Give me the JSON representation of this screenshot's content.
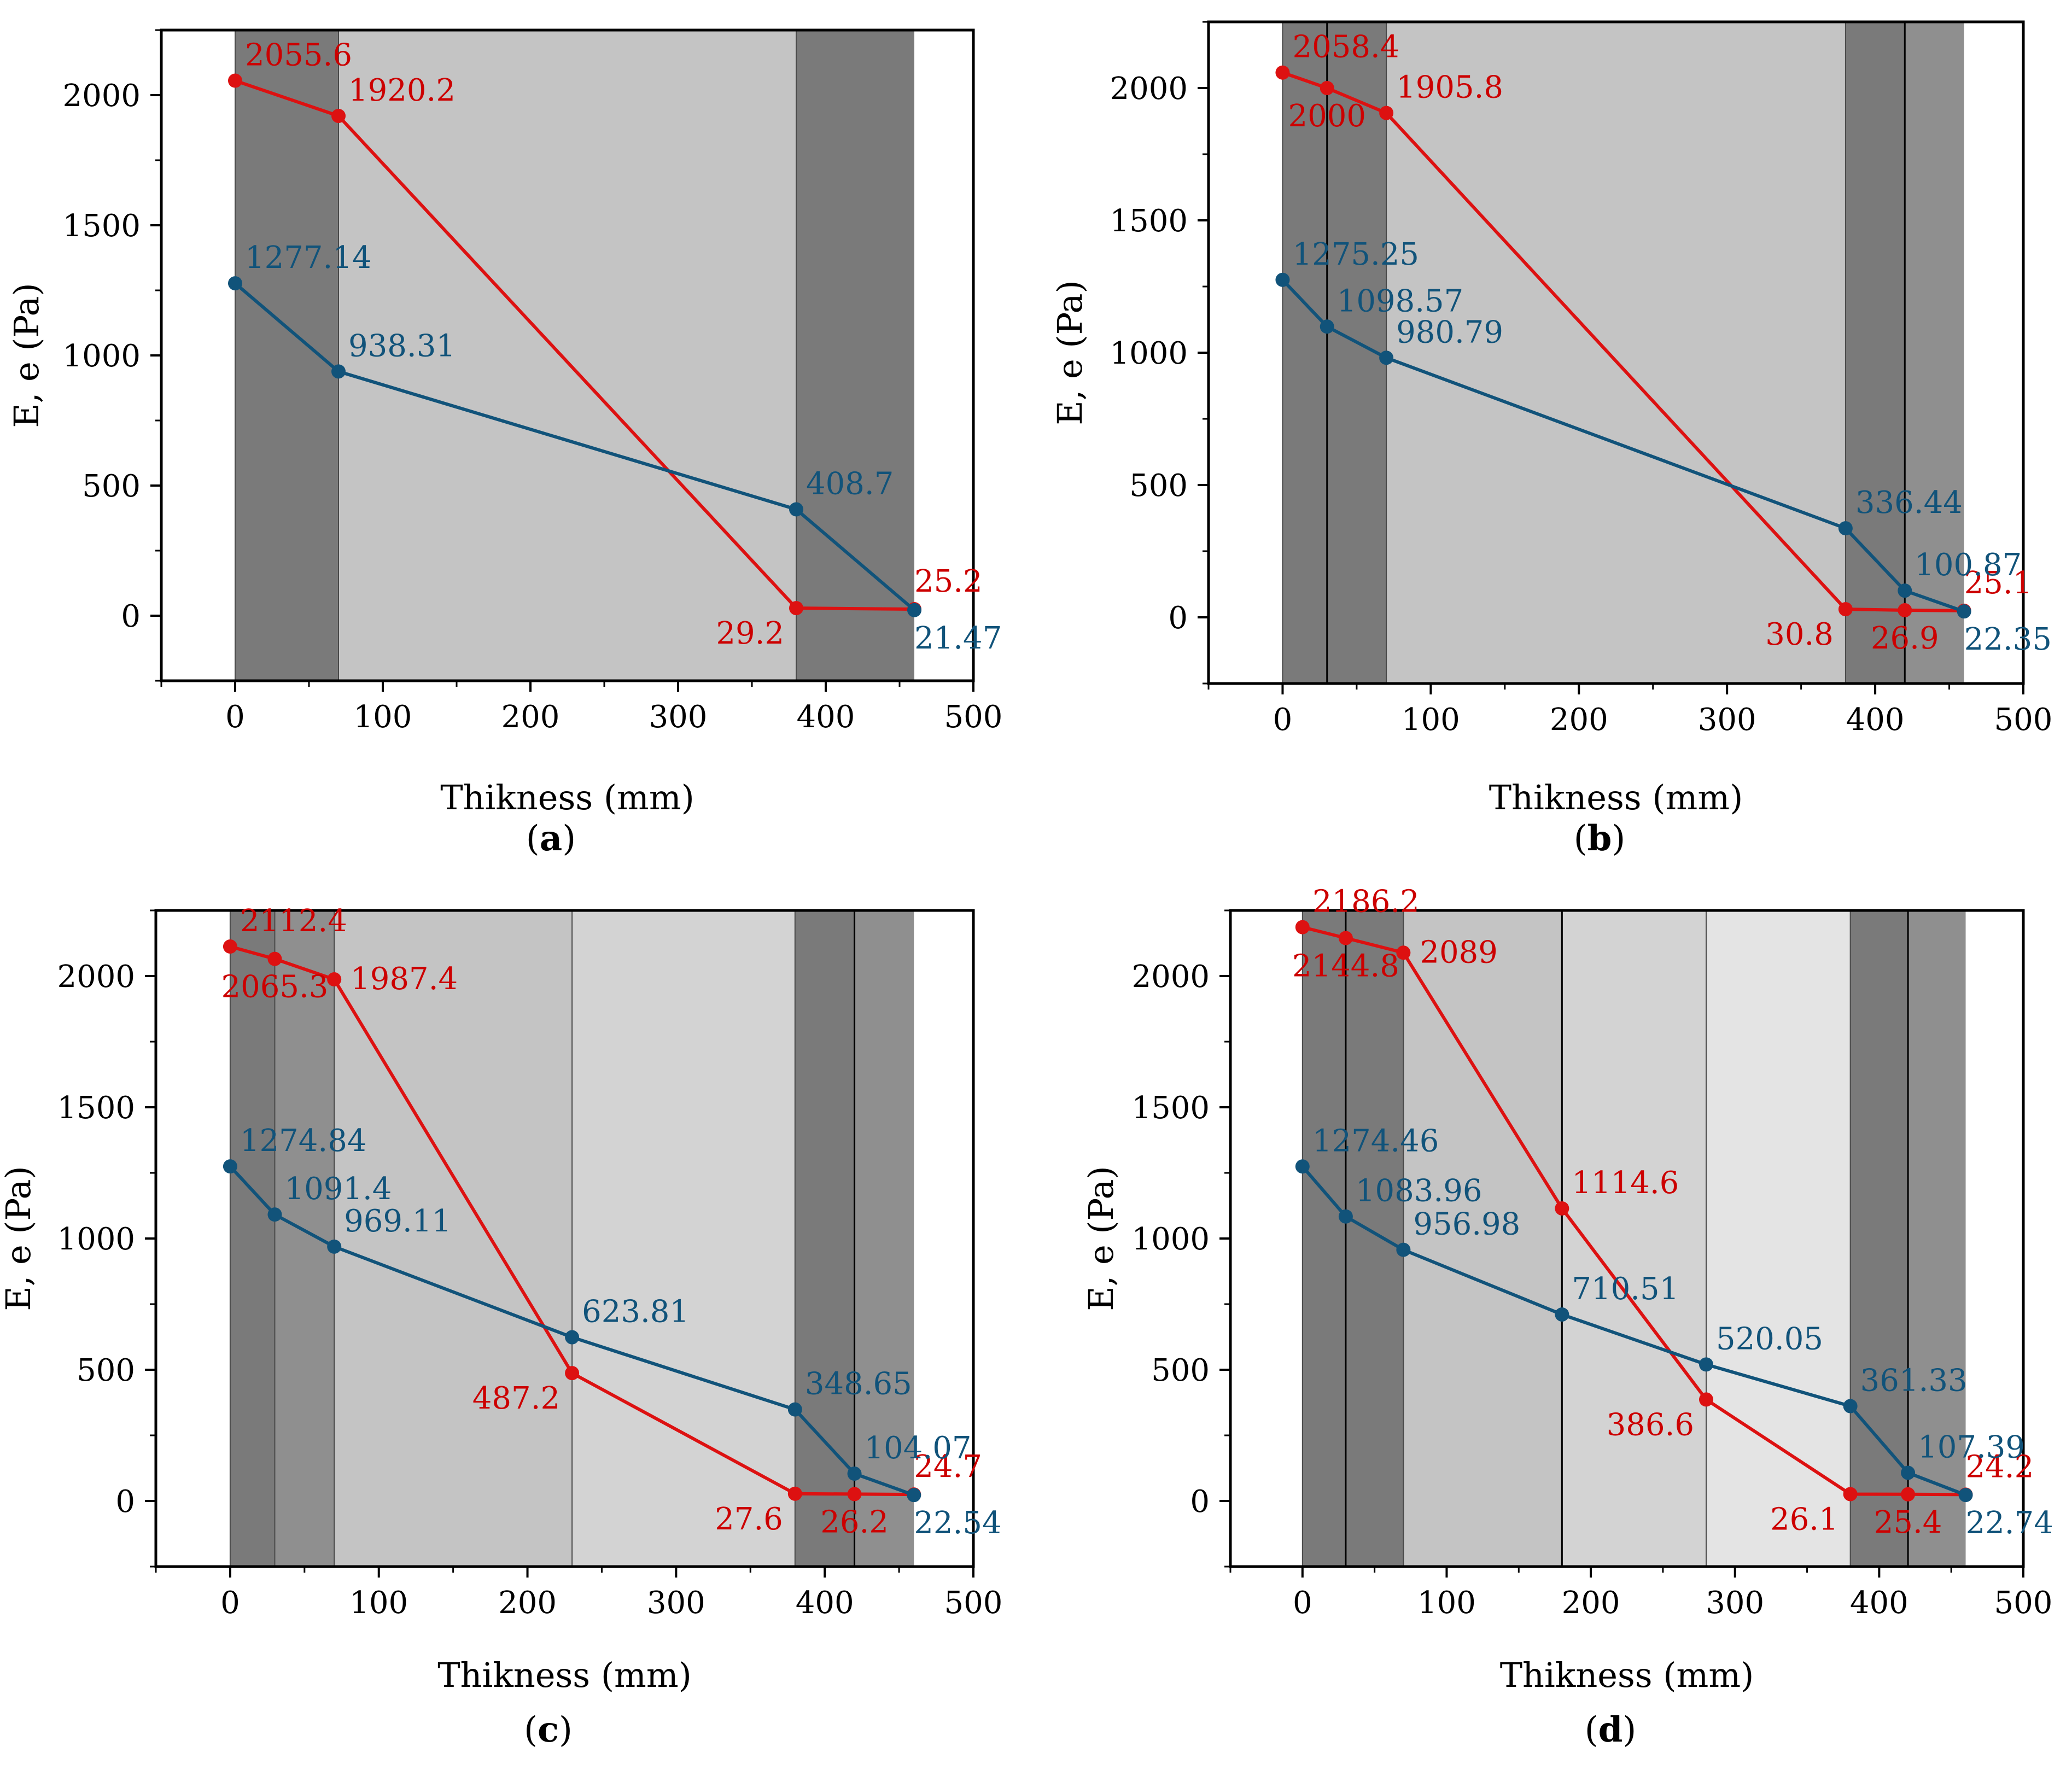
{
  "figure": {
    "colors": {
      "red": "#dd1111",
      "blue": "#11537a",
      "red_label": "#cc0000",
      "blue_label": "#11537a",
      "layer_dark": "#7a7a7a",
      "layer_medium": "#8f8f8f",
      "layer_light": "#c4c4c4",
      "layer_lighter": "#d3d3d3",
      "layer_lightest": "#e4e4e4"
    }
  },
  "chart_data": [
    {
      "id": "a",
      "type": "line",
      "panel_label": "a",
      "xlabel": "Thikness (mm)",
      "ylabel": "E, e (Pa)",
      "xlim": [
        -50,
        500
      ],
      "ylim": [
        -250,
        2250
      ],
      "xticks": [
        0,
        100,
        200,
        300,
        400,
        500
      ],
      "yticks": [
        0,
        500,
        1000,
        1500,
        2000
      ],
      "layers": [
        {
          "x0": 0,
          "x1": 70,
          "shade": "layer_dark"
        },
        {
          "x0": 70,
          "x1": 380,
          "shade": "layer_light"
        },
        {
          "x0": 380,
          "x1": 460,
          "shade": "layer_dark"
        }
      ],
      "boundaries": [],
      "series": [
        {
          "name": "E",
          "color": "red",
          "points": [
            {
              "x": 0,
              "y": 2055.6,
              "label": "2055.6",
              "pos": "ne"
            },
            {
              "x": 70,
              "y": 1920.2,
              "label": "1920.2",
              "pos": "ne"
            },
            {
              "x": 380,
              "y": 29.2,
              "label": "29.2",
              "pos": "sw"
            },
            {
              "x": 460,
              "y": 25.2,
              "label": "25.2",
              "pos": "n"
            }
          ]
        },
        {
          "name": "e",
          "color": "blue",
          "points": [
            {
              "x": 0,
              "y": 1277.14,
              "label": "1277.14",
              "pos": "ne"
            },
            {
              "x": 70,
              "y": 938.31,
              "label": "938.31",
              "pos": "ne"
            },
            {
              "x": 380,
              "y": 408.7,
              "label": "408.7",
              "pos": "ne"
            },
            {
              "x": 460,
              "y": 21.47,
              "label": "21.47",
              "pos": "s"
            }
          ]
        }
      ]
    },
    {
      "id": "b",
      "type": "line",
      "panel_label": "b",
      "xlabel": "Thikness (mm)",
      "ylabel": "E, e (Pa)",
      "xlim": [
        -50,
        500
      ],
      "ylim": [
        -250,
        2250
      ],
      "xticks": [
        0,
        100,
        200,
        300,
        400,
        500
      ],
      "yticks": [
        0,
        500,
        1000,
        1500,
        2000
      ],
      "layers": [
        {
          "x0": 0,
          "x1": 30,
          "shade": "layer_dark"
        },
        {
          "x0": 30,
          "x1": 70,
          "shade": "layer_dark"
        },
        {
          "x0": 70,
          "x1": 380,
          "shade": "layer_light"
        },
        {
          "x0": 380,
          "x1": 420,
          "shade": "layer_dark"
        },
        {
          "x0": 420,
          "x1": 460,
          "shade": "layer_medium"
        }
      ],
      "boundaries": [
        30,
        420
      ],
      "series": [
        {
          "name": "E",
          "color": "red",
          "points": [
            {
              "x": 0,
              "y": 2058.4,
              "label": "2058.4",
              "pos": "ne"
            },
            {
              "x": 30,
              "y": 2000,
              "label": "2000",
              "pos": "s"
            },
            {
              "x": 70,
              "y": 1905.8,
              "label": "1905.8",
              "pos": "ne"
            },
            {
              "x": 380,
              "y": 30.8,
              "label": "30.8",
              "pos": "sw"
            },
            {
              "x": 420,
              "y": 26.9,
              "label": "26.9",
              "pos": "s"
            },
            {
              "x": 460,
              "y": 25.1,
              "label": "25.1",
              "pos": "n"
            }
          ]
        },
        {
          "name": "e",
          "color": "blue",
          "points": [
            {
              "x": 0,
              "y": 1275.25,
              "label": "1275.25",
              "pos": "ne"
            },
            {
              "x": 30,
              "y": 1098.57,
              "label": "1098.57",
              "pos": "ne"
            },
            {
              "x": 70,
              "y": 980.79,
              "label": "980.79",
              "pos": "ne"
            },
            {
              "x": 380,
              "y": 336.44,
              "label": "336.44",
              "pos": "ne"
            },
            {
              "x": 420,
              "y": 100.87,
              "label": "100.87",
              "pos": "ne"
            },
            {
              "x": 460,
              "y": 22.35,
              "label": "22.35",
              "pos": "s"
            }
          ]
        }
      ]
    },
    {
      "id": "c",
      "type": "line",
      "panel_label": "c",
      "xlabel": "Thikness (mm)",
      "ylabel": "E, e (Pa)",
      "xlim": [
        -50,
        500
      ],
      "ylim": [
        -250,
        2250
      ],
      "xticks": [
        0,
        100,
        200,
        300,
        400,
        500
      ],
      "yticks": [
        0,
        500,
        1000,
        1500,
        2000
      ],
      "layers": [
        {
          "x0": 0,
          "x1": 30,
          "shade": "layer_dark"
        },
        {
          "x0": 30,
          "x1": 70,
          "shade": "layer_medium"
        },
        {
          "x0": 70,
          "x1": 230,
          "shade": "layer_light"
        },
        {
          "x0": 230,
          "x1": 380,
          "shade": "layer_lighter"
        },
        {
          "x0": 380,
          "x1": 420,
          "shade": "layer_dark"
        },
        {
          "x0": 420,
          "x1": 460,
          "shade": "layer_medium"
        }
      ],
      "boundaries": [
        420
      ],
      "series": [
        {
          "name": "E",
          "color": "red",
          "points": [
            {
              "x": 0,
              "y": 2112.4,
              "label": "2112.4",
              "pos": "ne"
            },
            {
              "x": 30,
              "y": 2065.3,
              "label": "2065.3",
              "pos": "s"
            },
            {
              "x": 70,
              "y": 1987.4,
              "label": "1987.4",
              "pos": "e"
            },
            {
              "x": 230,
              "y": 487.2,
              "label": "487.2",
              "pos": "sw"
            },
            {
              "x": 380,
              "y": 27.6,
              "label": "27.6",
              "pos": "sw"
            },
            {
              "x": 420,
              "y": 26.2,
              "label": "26.2",
              "pos": "s"
            },
            {
              "x": 460,
              "y": 24.7,
              "label": "24.7",
              "pos": "n"
            }
          ]
        },
        {
          "name": "e",
          "color": "blue",
          "points": [
            {
              "x": 0,
              "y": 1274.84,
              "label": "1274.84",
              "pos": "ne"
            },
            {
              "x": 30,
              "y": 1091.4,
              "label": "1091.4",
              "pos": "ne"
            },
            {
              "x": 70,
              "y": 969.11,
              "label": "969.11",
              "pos": "ne"
            },
            {
              "x": 230,
              "y": 623.81,
              "label": "623.81",
              "pos": "ne"
            },
            {
              "x": 380,
              "y": 348.65,
              "label": "348.65",
              "pos": "ne"
            },
            {
              "x": 420,
              "y": 104.07,
              "label": "104.07",
              "pos": "ne"
            },
            {
              "x": 460,
              "y": 22.54,
              "label": "22.54",
              "pos": "s"
            }
          ]
        }
      ]
    },
    {
      "id": "d",
      "type": "line",
      "panel_label": "d",
      "xlabel": "Thikness (mm)",
      "ylabel": "E, e (Pa)",
      "xlim": [
        -50,
        500
      ],
      "ylim": [
        -250,
        2250
      ],
      "xticks": [
        0,
        100,
        200,
        300,
        400,
        500
      ],
      "yticks": [
        0,
        500,
        1000,
        1500,
        2000
      ],
      "layers": [
        {
          "x0": 0,
          "x1": 30,
          "shade": "layer_dark"
        },
        {
          "x0": 30,
          "x1": 70,
          "shade": "layer_dark"
        },
        {
          "x0": 70,
          "x1": 180,
          "shade": "layer_light"
        },
        {
          "x0": 180,
          "x1": 280,
          "shade": "layer_lighter"
        },
        {
          "x0": 280,
          "x1": 380,
          "shade": "layer_lightest"
        },
        {
          "x0": 380,
          "x1": 420,
          "shade": "layer_dark"
        },
        {
          "x0": 420,
          "x1": 460,
          "shade": "layer_medium"
        }
      ],
      "boundaries": [
        30,
        180,
        420
      ],
      "series": [
        {
          "name": "E",
          "color": "red",
          "points": [
            {
              "x": 0,
              "y": 2186.2,
              "label": "2186.2",
              "pos": "ne"
            },
            {
              "x": 30,
              "y": 2144.8,
              "label": "2144.8",
              "pos": "s"
            },
            {
              "x": 70,
              "y": 2089,
              "label": "2089",
              "pos": "e"
            },
            {
              "x": 180,
              "y": 1114.6,
              "label": "1114.6",
              "pos": "ne"
            },
            {
              "x": 280,
              "y": 386.6,
              "label": "386.6",
              "pos": "sw"
            },
            {
              "x": 380,
              "y": 26.1,
              "label": "26.1",
              "pos": "sw"
            },
            {
              "x": 420,
              "y": 25.4,
              "label": "25.4",
              "pos": "s"
            },
            {
              "x": 460,
              "y": 24.2,
              "label": "24.2",
              "pos": "n"
            }
          ]
        },
        {
          "name": "e",
          "color": "blue",
          "points": [
            {
              "x": 0,
              "y": 1274.46,
              "label": "1274.46",
              "pos": "ne"
            },
            {
              "x": 30,
              "y": 1083.96,
              "label": "1083.96",
              "pos": "ne"
            },
            {
              "x": 70,
              "y": 956.98,
              "label": "956.98",
              "pos": "ne"
            },
            {
              "x": 180,
              "y": 710.51,
              "label": "710.51",
              "pos": "ne"
            },
            {
              "x": 280,
              "y": 520.05,
              "label": "520.05",
              "pos": "ne"
            },
            {
              "x": 380,
              "y": 361.33,
              "label": "361.33",
              "pos": "ne"
            },
            {
              "x": 420,
              "y": 107.39,
              "label": "107.39",
              "pos": "ne"
            },
            {
              "x": 460,
              "y": 22.74,
              "label": "22.74",
              "pos": "s"
            }
          ]
        }
      ]
    }
  ]
}
